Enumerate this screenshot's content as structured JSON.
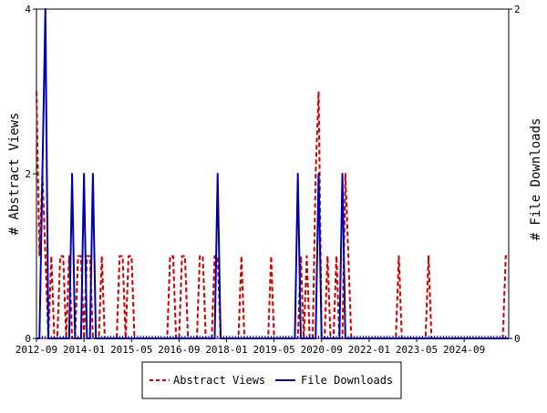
{
  "chart_data": {
    "type": "line",
    "y_left_label": "# Abstract Views",
    "y_right_label": "# File Downloads",
    "y_left_ticks": [
      "0",
      "2",
      "4"
    ],
    "y_right_ticks": [
      "0",
      "2"
    ],
    "y_left_range": [
      0,
      4
    ],
    "y_right_range": [
      0,
      2
    ],
    "x_range": [
      "2012-09",
      "2025-12"
    ],
    "x_tick_labels": [
      "2012-09",
      "2014-01",
      "2015-05",
      "2016-09",
      "2018-01",
      "2019-05",
      "2020-09",
      "2022-01",
      "2023-05",
      "2024-09"
    ],
    "grid": false,
    "legend_position": "bottom",
    "series": [
      {
        "name": "Abstract Views",
        "axis": "left",
        "color": "#cc0000",
        "style": "dashed",
        "points": [
          [
            "2012-09",
            3
          ],
          [
            "2012-10",
            1
          ],
          [
            "2012-11",
            2
          ],
          [
            "2012-12",
            1
          ],
          [
            "2013-01",
            0
          ],
          [
            "2013-02",
            1
          ],
          [
            "2013-05",
            1
          ],
          [
            "2013-06",
            1
          ],
          [
            "2013-08",
            1
          ],
          [
            "2013-11",
            1
          ],
          [
            "2013-12",
            1
          ],
          [
            "2014-02",
            1
          ],
          [
            "2014-03",
            1
          ],
          [
            "2014-07",
            1
          ],
          [
            "2015-01",
            1
          ],
          [
            "2015-02",
            1
          ],
          [
            "2015-04",
            1
          ],
          [
            "2015-05",
            1
          ],
          [
            "2016-06",
            1
          ],
          [
            "2016-07",
            1
          ],
          [
            "2016-10",
            1
          ],
          [
            "2016-11",
            1
          ],
          [
            "2017-04",
            1
          ],
          [
            "2017-05",
            1
          ],
          [
            "2017-09",
            1
          ],
          [
            "2017-10",
            1
          ],
          [
            "2018-06",
            1
          ],
          [
            "2019-04",
            1
          ],
          [
            "2020-02",
            1
          ],
          [
            "2020-04",
            1
          ],
          [
            "2020-07",
            2
          ],
          [
            "2020-08",
            3
          ],
          [
            "2020-11",
            1
          ],
          [
            "2021-02",
            1
          ],
          [
            "2021-05",
            2
          ],
          [
            "2021-06",
            1
          ],
          [
            "2022-11",
            1
          ],
          [
            "2023-09",
            1
          ],
          [
            "2025-11",
            1
          ],
          [
            "2025-12",
            1
          ]
        ]
      },
      {
        "name": "File Downloads",
        "axis": "right",
        "color": "#0000aa",
        "style": "solid",
        "points": [
          [
            "2012-11",
            1
          ],
          [
            "2012-12",
            2
          ],
          [
            "2013-01",
            0
          ],
          [
            "2013-09",
            1
          ],
          [
            "2014-01",
            1
          ],
          [
            "2014-04",
            1
          ],
          [
            "2017-10",
            1
          ],
          [
            "2020-01",
            1
          ],
          [
            "2020-08",
            1
          ],
          [
            "2021-04",
            1
          ]
        ]
      }
    ]
  }
}
